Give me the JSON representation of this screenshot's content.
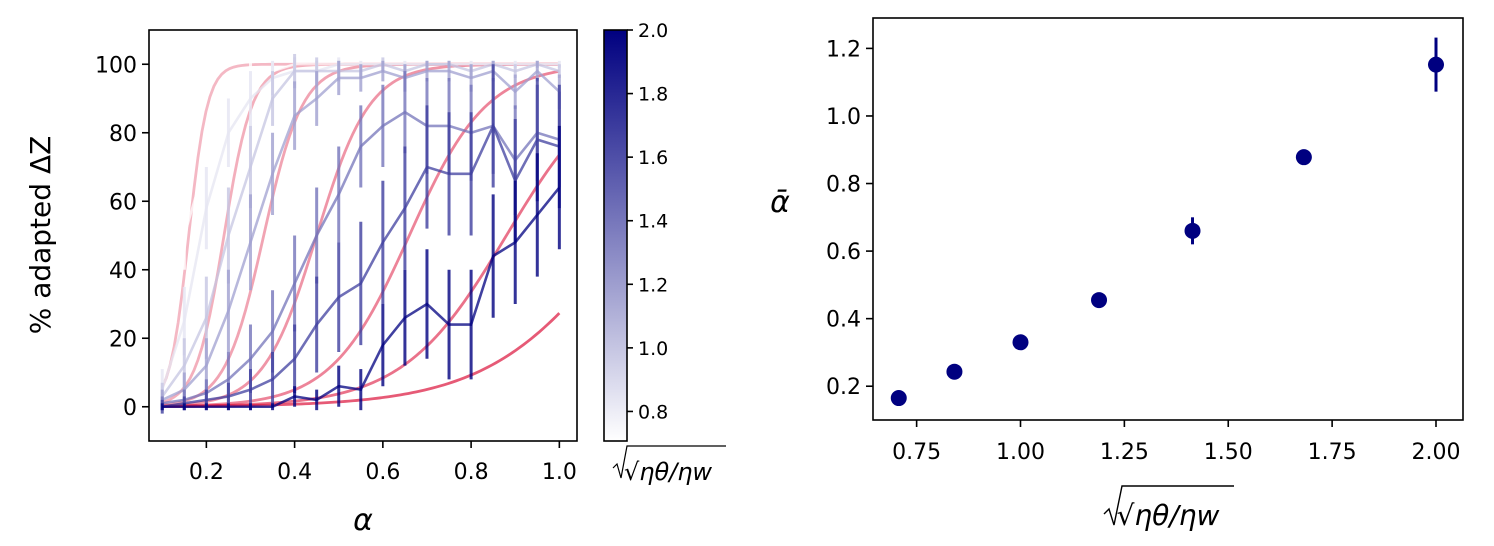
{
  "colors": {
    "dark_blue": "#000080",
    "fit_red": "#dc143c",
    "white": "#ffffff"
  },
  "chart_data": [
    {
      "type": "line",
      "xlabel": "α",
      "ylabel": "% adapted ΔZ",
      "xlim": [
        0.07,
        1.04
      ],
      "ylim": [
        -10,
        110
      ],
      "xticks": [
        0.2,
        0.4,
        0.6,
        0.8,
        1.0
      ],
      "xtick_labels": [
        "0.2",
        "0.4",
        "0.6",
        "0.8",
        "1.0"
      ],
      "yticks": [
        0,
        20,
        40,
        60,
        80,
        100
      ],
      "ytick_labels": [
        "0",
        "20",
        "40",
        "60",
        "80",
        "100"
      ],
      "grid": false,
      "x": [
        0.1,
        0.15,
        0.2,
        0.25,
        0.3,
        0.35,
        0.4,
        0.45,
        0.5,
        0.55,
        0.6,
        0.65,
        0.7,
        0.75,
        0.8,
        0.85,
        0.9,
        0.95,
        1.0
      ],
      "series": [
        {
          "ratio": 0.707,
          "values": [
            10,
            50,
            72,
            88,
            95,
            98,
            100,
            100,
            100,
            100,
            100,
            100,
            100,
            100,
            100,
            100,
            100,
            100,
            100
          ],
          "errors": [
            8,
            10,
            10,
            8,
            6,
            4,
            2,
            1,
            1,
            1,
            1,
            1,
            1,
            1,
            1,
            1,
            1,
            1,
            1
          ],
          "alpha_bar": 0.16
        },
        {
          "ratio": 0.841,
          "values": [
            5,
            25,
            58,
            80,
            90,
            96,
            98,
            98,
            100,
            100,
            100,
            100,
            100,
            100,
            100,
            100,
            100,
            100,
            100
          ],
          "errors": [
            6,
            10,
            12,
            10,
            8,
            5,
            4,
            3,
            2,
            1,
            1,
            1,
            1,
            1,
            1,
            1,
            1,
            1,
            1
          ],
          "alpha_bar": 0.24
        },
        {
          "ratio": 1.0,
          "values": [
            3,
            12,
            26,
            50,
            70,
            90,
            98,
            98,
            98,
            98,
            100,
            98,
            100,
            100,
            98,
            100,
            98,
            100,
            98
          ],
          "errors": [
            4,
            8,
            12,
            14,
            12,
            8,
            5,
            4,
            3,
            2,
            2,
            2,
            1,
            1,
            2,
            1,
            2,
            1,
            2
          ],
          "alpha_bar": 0.33
        },
        {
          "ratio": 1.189,
          "values": [
            2,
            5,
            12,
            28,
            48,
            68,
            85,
            90,
            96,
            96,
            98,
            96,
            98,
            98,
            96,
            98,
            92,
            98,
            92
          ],
          "errors": [
            3,
            5,
            8,
            12,
            14,
            12,
            10,
            8,
            5,
            4,
            3,
            4,
            3,
            3,
            4,
            3,
            5,
            3,
            5
          ],
          "alpha_bar": 0.45
        },
        {
          "ratio": 1.414,
          "values": [
            1,
            2,
            4,
            8,
            14,
            22,
            36,
            50,
            62,
            76,
            82,
            86,
            82,
            82,
            80,
            82,
            72,
            80,
            78
          ],
          "errors": [
            2,
            3,
            4,
            8,
            10,
            12,
            14,
            14,
            14,
            12,
            12,
            12,
            14,
            14,
            14,
            14,
            16,
            14,
            14
          ],
          "alpha_bar": 0.66
        },
        {
          "ratio": 1.682,
          "values": [
            0,
            1,
            2,
            3,
            5,
            8,
            14,
            24,
            32,
            36,
            48,
            58,
            70,
            68,
            68,
            82,
            66,
            78,
            76
          ],
          "errors": [
            2,
            2,
            3,
            4,
            6,
            8,
            10,
            14,
            16,
            18,
            18,
            18,
            18,
            18,
            18,
            18,
            18,
            18,
            18
          ],
          "alpha_bar": 0.88
        },
        {
          "ratio": 2.0,
          "values": [
            0,
            0,
            0,
            0,
            0,
            0,
            3,
            2,
            6,
            5,
            18,
            26,
            30,
            24,
            24,
            44,
            48,
            56,
            64
          ],
          "errors": [
            1,
            1,
            1,
            1,
            1,
            1,
            3,
            3,
            6,
            6,
            12,
            14,
            16,
            16,
            16,
            18,
            18,
            18,
            18
          ],
          "alpha_bar": 1.15
        }
      ],
      "fits": [
        {
          "ratio": 0.707,
          "alpha_bar": 0.16
        },
        {
          "ratio": 0.841,
          "alpha_bar": 0.24
        },
        {
          "ratio": 1.0,
          "alpha_bar": 0.33
        },
        {
          "ratio": 1.189,
          "alpha_bar": 0.45
        },
        {
          "ratio": 1.414,
          "alpha_bar": 0.66
        },
        {
          "ratio": 1.682,
          "alpha_bar": 0.88
        },
        {
          "ratio": 2.0,
          "alpha_bar": 1.15
        }
      ],
      "colorbar": {
        "label": "√ηθ/ηw",
        "range": [
          0.707,
          2.0
        ],
        "ticks": [
          0.8,
          1.0,
          1.2,
          1.4,
          1.6,
          1.8,
          2.0
        ],
        "tick_labels": [
          "0.8",
          "1.0",
          "1.2",
          "1.4",
          "1.6",
          "1.8",
          "2.0"
        ],
        "colors": [
          "#ffffff",
          "#000080"
        ]
      }
    },
    {
      "type": "scatter",
      "xlabel": "√ηθ/ηw",
      "ylabel": "ᾱ",
      "xlim": [
        0.645,
        2.065
      ],
      "ylim": [
        0.1,
        1.29
      ],
      "xticks": [
        0.75,
        1.0,
        1.25,
        1.5,
        1.75,
        2.0
      ],
      "xtick_labels": [
        "0.75",
        "1.00",
        "1.25",
        "1.50",
        "1.75",
        "2.00"
      ],
      "yticks": [
        0.2,
        0.4,
        0.6,
        0.8,
        1.0,
        1.2
      ],
      "ytick_labels": [
        "0.2",
        "0.4",
        "0.6",
        "0.8",
        "1.0",
        "1.2"
      ],
      "grid": false,
      "x": [
        0.707,
        0.841,
        1.0,
        1.189,
        1.414,
        1.682,
        2.0
      ],
      "y": [
        0.165,
        0.243,
        0.33,
        0.455,
        0.66,
        0.878,
        1.152
      ],
      "yerr": [
        0.01,
        0.01,
        0.012,
        0.012,
        0.04,
        0.02,
        0.08
      ],
      "marker_color": "#000080"
    }
  ]
}
